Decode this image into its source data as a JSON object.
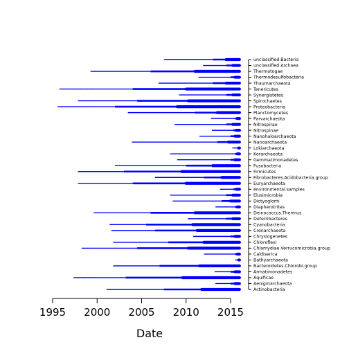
{
  "chart_data": {
    "type": "scatter",
    "title": "",
    "xlabel": "Date",
    "ylabel": "",
    "xlim": [
      1995,
      2016.5
    ],
    "x_ticks": [
      1995,
      2000,
      2005,
      2010,
      2015
    ],
    "x_tick_labels": [
      "1995",
      "2000",
      "2005",
      "2010",
      "2015"
    ],
    "grid": false,
    "legend": "none",
    "point_color": "#0000ff",
    "categories": [
      {
        "name": "Actinobacteria",
        "start": 2001.1,
        "thick_start": 2007.5,
        "sparse": [
          2001.1,
          2001.5
        ]
      },
      {
        "name": "Aenigmarchaeota",
        "start": 2013.3,
        "thick_start": 2015.0,
        "sparse": []
      },
      {
        "name": "Aquificae",
        "start": 1997.4,
        "thick_start": 2003.2,
        "sparse": [
          1997.4,
          1997.9,
          1998.5,
          1999.2,
          1999.8
        ]
      },
      {
        "name": "Armatimonadetes",
        "start": 2013.2,
        "thick_start": 2015.0,
        "sparse": []
      },
      {
        "name": "Bacteroidetes.Chlorobi.group",
        "start": 2001.8,
        "thick_start": 2007.0,
        "sparse": []
      },
      {
        "name": "Bathyarchaeota",
        "start": 2015.5,
        "thick_start": 2015.8,
        "sparse": []
      },
      {
        "name": "Caldiserica",
        "start": 2012.0,
        "thick_start": 2015.5,
        "sparse": []
      },
      {
        "name": "Chlamydiae.Verrucomicrobia.group",
        "start": 1998.3,
        "thick_start": 2004.5,
        "sparse": [
          1998.3,
          1998.8,
          1999.3
        ]
      },
      {
        "name": "Chloroflexi",
        "start": 2001.8,
        "thick_start": 2008.0,
        "sparse": []
      },
      {
        "name": "Chrysiogenetes",
        "start": 2010.8,
        "thick_start": 2015.0,
        "sparse": []
      },
      {
        "name": "Crenarchaeota",
        "start": 2001.6,
        "thick_start": 2006.5,
        "sparse": []
      },
      {
        "name": "Cyanobacteria",
        "start": 2001.4,
        "thick_start": 2005.5,
        "sparse": []
      },
      {
        "name": "Deferribacteres",
        "start": 2010.2,
        "thick_start": 2014.5,
        "sparse": []
      },
      {
        "name": "Deinococcus.Thermus",
        "start": 1999.6,
        "thick_start": 2006.0,
        "sparse": []
      },
      {
        "name": "Diapherotrites",
        "start": 2013.3,
        "thick_start": 2015.5,
        "sparse": []
      },
      {
        "name": "Dictyoglomi",
        "start": 2008.5,
        "thick_start": 2014.0,
        "sparse": []
      },
      {
        "name": "Elusimicrobia",
        "start": 2008.2,
        "thick_start": 2014.5,
        "sparse": []
      },
      {
        "name": "environmental.samples",
        "start": 2013.8,
        "thick_start": 2015.3,
        "sparse": []
      },
      {
        "name": "Euryarchaeota",
        "start": 1997.9,
        "thick_start": 2004.0,
        "sparse": [
          1997.9,
          1998.4,
          1999.0
        ]
      },
      {
        "name": "Fibrobacteres.Acidobacteria.group",
        "start": 2006.5,
        "thick_start": 2012.0,
        "sparse": []
      },
      {
        "name": "Firmicutes",
        "start": 1997.9,
        "thick_start": 2003.0,
        "sparse": [
          1997.9,
          1998.5,
          1999.0,
          1999.6
        ]
      },
      {
        "name": "Fusobacteria",
        "start": 2002.0,
        "thick_start": 2010.0,
        "sparse": []
      },
      {
        "name": "Gemmatimonadetes",
        "start": 2009.0,
        "thick_start": 2015.0,
        "sparse": []
      },
      {
        "name": "Korarchaeota",
        "start": 2008.2,
        "thick_start": 2015.5,
        "sparse": []
      },
      {
        "name": "Lokiarchaeota",
        "start": 2015.2,
        "thick_start": 2015.8,
        "sparse": []
      },
      {
        "name": "Nanoarchaeota",
        "start": 2003.9,
        "thick_start": 2013.5,
        "sparse": []
      },
      {
        "name": "Nanohaloarchaeota",
        "start": 2011.5,
        "thick_start": 2015.0,
        "sparse": []
      },
      {
        "name": "Nitrospinae",
        "start": 2012.9,
        "thick_start": 2015.3,
        "sparse": []
      },
      {
        "name": "Nitrospirae",
        "start": 2008.7,
        "thick_start": 2014.5,
        "sparse": []
      },
      {
        "name": "Parvarchaeota",
        "start": 2012.8,
        "thick_start": 2015.5,
        "sparse": []
      },
      {
        "name": "Planctomycetes",
        "start": 2003.5,
        "thick_start": 2011.0,
        "sparse": [
          2003.5
        ]
      },
      {
        "name": "Proteobacteria",
        "start": 1995.6,
        "thick_start": 2002.0,
        "sparse": [
          1995.6,
          1996.0,
          1997.0,
          1997.8,
          1998.3,
          1999.0,
          1999.5
        ]
      },
      {
        "name": "Spirochaetes",
        "start": 1997.9,
        "thick_start": 2004.5,
        "sparse": [
          1997.9,
          1998.5,
          1999.2
        ]
      },
      {
        "name": "Synergistetes",
        "start": 2009.2,
        "thick_start": 2014.5,
        "sparse": []
      },
      {
        "name": "Tenericutes",
        "start": 1995.8,
        "thick_start": 2004.0,
        "sparse": [
          1995.8,
          1997.5,
          1998.2,
          1998.8,
          1999.4
        ]
      },
      {
        "name": "Thaumarchaeota",
        "start": 2006.9,
        "thick_start": 2013.0,
        "sparse": []
      },
      {
        "name": "Thermodesulfobacteria",
        "start": 2011.4,
        "thick_start": 2015.0,
        "sparse": []
      },
      {
        "name": "Thermotogae",
        "start": 1999.3,
        "thick_start": 2006.0,
        "sparse": [
          1999.3,
          1999.8
        ]
      },
      {
        "name": "unclassified.Archaea",
        "start": 2011.9,
        "thick_start": 2014.5,
        "sparse": []
      },
      {
        "name": "unclassified.Bacteria",
        "start": 2007.5,
        "thick_start": 2013.0,
        "sparse": []
      }
    ]
  }
}
